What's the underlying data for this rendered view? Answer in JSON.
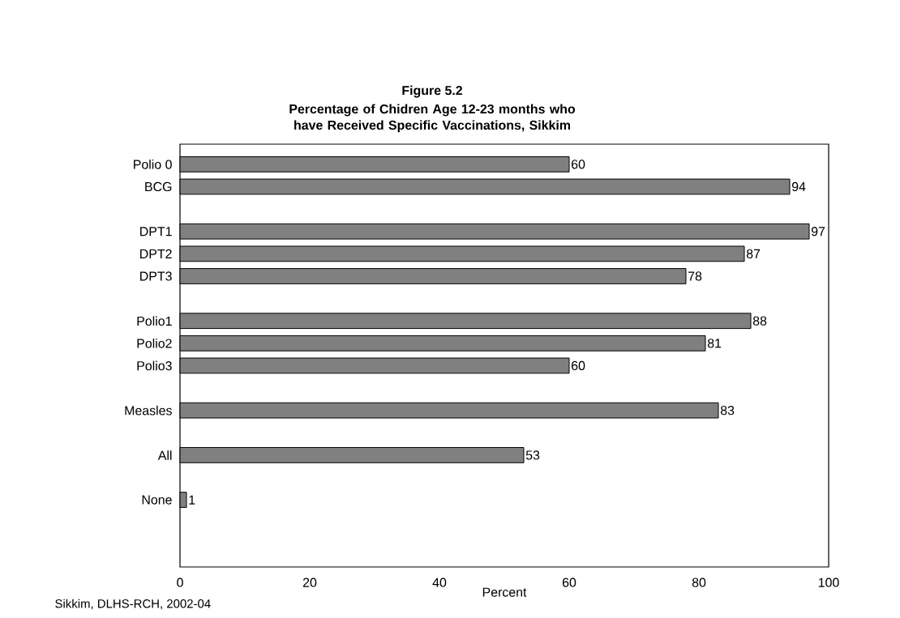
{
  "chart_data": {
    "type": "bar",
    "orientation": "horizontal",
    "title": "Figure 5.2",
    "subtitle": "Percentage  of Chidren Age 12-23 months who have Received Specific Vaccinations, Sikkim",
    "xlabel": "Percent",
    "annotations": [
      "Sikkim, DLHS-RCH, 2002-04"
    ],
    "categories": [
      "Polio 0",
      "BCG",
      null,
      "DPT1",
      "DPT2",
      "DPT3",
      null,
      "Polio1",
      "Polio2",
      "Polio3",
      null,
      "Measles",
      null,
      "All",
      null,
      "None"
    ],
    "values": [
      60,
      94,
      null,
      97,
      87,
      78,
      null,
      88,
      81,
      60,
      null,
      83,
      null,
      53,
      null,
      1
    ],
    "color": "#808080",
    "xlim": [
      0,
      100
    ],
    "xticks": [
      0,
      20,
      40,
      60,
      80,
      100
    ],
    "data_labels": true
  }
}
